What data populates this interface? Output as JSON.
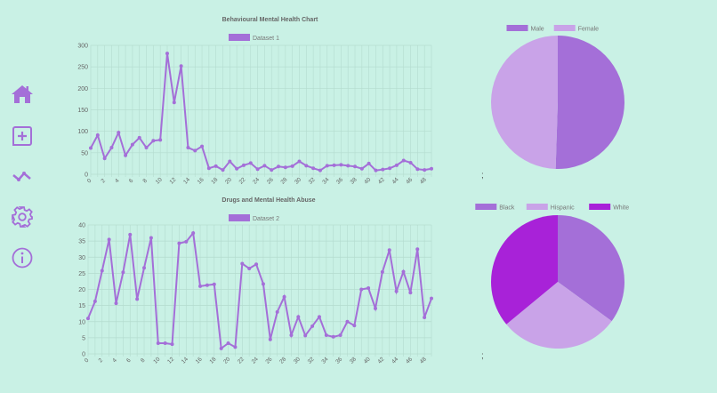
{
  "sidebar": {
    "items": [
      {
        "icon": "home-icon",
        "label": "Home"
      },
      {
        "icon": "add-icon",
        "label": "Add"
      },
      {
        "icon": "trend-icon",
        "label": "Trends"
      },
      {
        "icon": "gear-icon",
        "label": "Settings"
      },
      {
        "icon": "info-icon",
        "label": "Info"
      }
    ],
    "icon_color": "#a46fd8"
  },
  "separators": [
    ";",
    ";"
  ],
  "colors": {
    "background": "#c9f1e5",
    "line": "#a46fd8",
    "grid": "#b4dccf",
    "male": "#a46fd8",
    "female": "#c9a3e8",
    "black": "#a46fd8",
    "hispanic": "#c9a3e8",
    "white": "#a822d8"
  },
  "chart_data": [
    {
      "type": "line",
      "title": "Behavioural Mental Health Chart",
      "series": [
        {
          "name": "Dataset 1",
          "values": [
            61,
            91,
            37,
            62,
            97,
            44,
            69,
            85,
            62,
            78,
            80,
            281,
            167,
            252,
            62,
            55,
            65,
            14,
            19,
            10,
            30,
            13,
            21,
            26,
            12,
            20,
            10,
            18,
            16,
            19,
            30,
            20,
            14,
            9,
            20,
            21,
            22,
            20,
            18,
            13,
            25,
            9,
            11,
            14,
            21,
            32,
            27,
            12,
            10,
            13
          ]
        }
      ],
      "x": [
        0,
        1,
        2,
        3,
        4,
        5,
        6,
        7,
        8,
        9,
        10,
        11,
        12,
        13,
        14,
        15,
        16,
        17,
        18,
        19,
        20,
        21,
        22,
        23,
        24,
        25,
        26,
        27,
        28,
        29,
        30,
        31,
        32,
        33,
        34,
        35,
        36,
        37,
        38,
        39,
        40,
        41,
        42,
        43,
        44,
        45,
        46,
        47,
        48,
        49
      ],
      "yticks": [
        "0",
        "50",
        "100",
        "150",
        "200",
        "250",
        "300"
      ],
      "ylim": [
        0,
        300
      ],
      "legend": "top",
      "grid": true
    },
    {
      "type": "line",
      "title": "Drugs and Mental Health Abuse",
      "series": [
        {
          "name": "Dataset 2",
          "values": [
            11,
            16.3,
            25.8,
            35.5,
            15.7,
            25.3,
            37,
            17,
            26.7,
            36,
            3.3,
            3.3,
            3,
            34.3,
            34.8,
            37.5,
            21,
            21.3,
            21.6,
            1.7,
            3.3,
            2.1,
            28,
            26.5,
            27.8,
            21.7,
            4.5,
            13,
            17.7,
            5.8,
            11.5,
            5.7,
            8.6,
            11.5,
            5.8,
            5.3,
            5.8,
            10,
            8.8,
            20,
            20.4,
            14.1,
            25.4,
            32.2,
            19.4,
            25.5,
            19,
            32.5,
            11.3,
            17.2
          ]
        }
      ],
      "x": [
        0,
        1,
        2,
        3,
        4,
        5,
        6,
        7,
        8,
        9,
        10,
        11,
        12,
        13,
        14,
        15,
        16,
        17,
        18,
        19,
        20,
        21,
        22,
        23,
        24,
        25,
        26,
        27,
        28,
        29,
        30,
        31,
        32,
        33,
        34,
        35,
        36,
        37,
        38,
        39,
        40,
        41,
        42,
        43,
        44,
        45,
        46,
        47,
        48,
        49
      ],
      "yticks": [
        "0",
        "5",
        "10",
        "15",
        "20",
        "25",
        "30",
        "35",
        "40"
      ],
      "ylim": [
        0,
        40
      ],
      "legend": "top",
      "grid": true
    },
    {
      "type": "pie",
      "categories": [
        "Male",
        "Female"
      ],
      "values": [
        50.5,
        49.5
      ],
      "legend": "top"
    },
    {
      "type": "pie",
      "categories": [
        "Black",
        "Hispanic",
        "White"
      ],
      "values": [
        35,
        29,
        36
      ],
      "legend": "top"
    }
  ]
}
